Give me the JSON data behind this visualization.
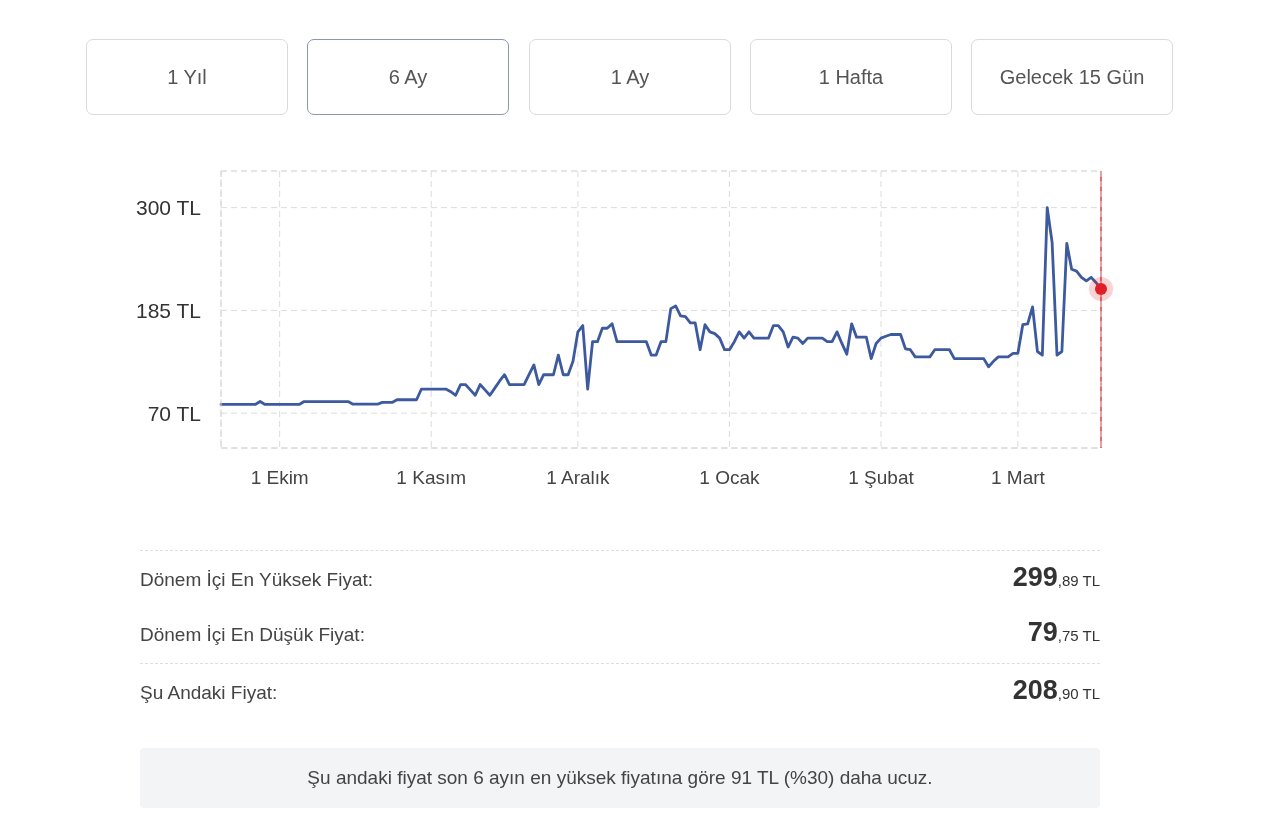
{
  "chart_data": {
    "type": "line",
    "annotations": [
      "1 Yıl",
      "6 Ay",
      "1 Ay",
      "1 Hafta",
      "Gelecek 15 Gün",
      "Dönem İçi En Yüksek Fiyat:",
      "299,89 TL",
      "Dönem İçi En Düşük Fiyat:",
      "79,75 TL",
      "Şu Andaki Fiyat:",
      "208,90 TL",
      "Şu andaki fiyat son 6 ayın en yüksek fiyatına göre 91 TL (%30) daha ucuz."
    ],
    "categories": [
      null,
      null,
      null,
      null,
      null,
      null,
      null,
      null,
      null,
      null,
      null,
      null,
      "1 Ekim",
      null,
      null,
      null,
      null,
      null,
      null,
      null,
      null,
      null,
      null,
      null,
      null,
      null,
      null,
      null,
      null,
      null,
      null,
      null,
      null,
      null,
      null,
      null,
      null,
      null,
      null,
      null,
      null,
      null,
      null,
      "1 Kasım",
      null,
      null,
      null,
      null,
      null,
      null,
      null,
      null,
      null,
      null,
      null,
      null,
      null,
      null,
      null,
      null,
      null,
      null,
      null,
      null,
      null,
      null,
      null,
      null,
      null,
      null,
      null,
      null,
      null,
      "1 Aralık",
      null,
      null,
      null,
      null,
      null,
      null,
      null,
      null,
      null,
      null,
      null,
      null,
      null,
      null,
      null,
      null,
      null,
      null,
      null,
      null,
      null,
      null,
      null,
      null,
      null,
      null,
      null,
      null,
      null,
      null,
      "1 Ocak",
      null,
      null,
      null,
      null,
      null,
      null,
      null,
      null,
      null,
      null,
      null,
      null,
      null,
      null,
      null,
      null,
      null,
      null,
      null,
      null,
      null,
      null,
      null,
      null,
      null,
      null,
      null,
      null,
      null,
      null,
      "1 Şubat",
      null,
      null,
      null,
      null,
      null,
      null,
      null,
      null,
      null,
      null,
      null,
      null,
      null,
      null,
      null,
      null,
      null,
      null,
      null,
      null,
      null,
      null,
      null,
      null,
      null,
      null,
      null,
      "1 Mart",
      null,
      null,
      null,
      null,
      null,
      null,
      null,
      null,
      null,
      null,
      null,
      null,
      null,
      null,
      null,
      null,
      null
    ],
    "series": [
      {
        "color": "#3d5a9e",
        "values": [
          79.75,
          79.75,
          79.75,
          79.75,
          79.75,
          79.75,
          79.75,
          79.75,
          83,
          79.75,
          79.75,
          79.75,
          79.75,
          79.75,
          79.75,
          79.75,
          79.75,
          83,
          83,
          83,
          83,
          83,
          83,
          83,
          83,
          83,
          83,
          80,
          80,
          80,
          80,
          80,
          80,
          82,
          82,
          82,
          85,
          85,
          85,
          85,
          85,
          97,
          97,
          97,
          97,
          97,
          97,
          94,
          90,
          102,
          102,
          96,
          90,
          102,
          96,
          90,
          98,
          106,
          113,
          102,
          102,
          102,
          102,
          113,
          124,
          102,
          113,
          113,
          113,
          135,
          113,
          113,
          128,
          161,
          168,
          97,
          150,
          150,
          165,
          165,
          170,
          150,
          150,
          150,
          150,
          150,
          150,
          150,
          135,
          135,
          150,
          150,
          187,
          190,
          179,
          178,
          171,
          171,
          141,
          169,
          161,
          159,
          154,
          141,
          141,
          150,
          161,
          154,
          161,
          154,
          154,
          154,
          154,
          168,
          168,
          161,
          144,
          155,
          154,
          148,
          154,
          154,
          154,
          154,
          150,
          150,
          161,
          148,
          136,
          170,
          155,
          155,
          155,
          131,
          148,
          154,
          156,
          158,
          158,
          158,
          142,
          141,
          133,
          133,
          133,
          133,
          141,
          141,
          141,
          141,
          131,
          131,
          131,
          131,
          131,
          131,
          131,
          122,
          128,
          133,
          133,
          133,
          137,
          137,
          169,
          170,
          189,
          139,
          135,
          299.89,
          261,
          135,
          139,
          260,
          231,
          229,
          222,
          218,
          222,
          216,
          208.9
        ]
      },
      {
        "type": "scatter",
        "color": "#e01f26",
        "marker": "circle",
        "values": [
          null,
          null,
          null,
          null,
          null,
          null,
          null,
          null,
          null,
          null,
          null,
          null,
          null,
          null,
          null,
          null,
          null,
          null,
          null,
          null,
          null,
          null,
          null,
          null,
          null,
          null,
          null,
          null,
          null,
          null,
          null,
          null,
          null,
          null,
          null,
          null,
          null,
          null,
          null,
          null,
          null,
          null,
          null,
          null,
          null,
          null,
          null,
          null,
          null,
          null,
          null,
          null,
          null,
          null,
          null,
          null,
          null,
          null,
          null,
          null,
          null,
          null,
          null,
          null,
          null,
          null,
          null,
          null,
          null,
          null,
          null,
          null,
          null,
          null,
          null,
          null,
          null,
          null,
          null,
          null,
          null,
          null,
          null,
          null,
          null,
          null,
          null,
          null,
          null,
          null,
          null,
          null,
          null,
          null,
          null,
          null,
          null,
          null,
          null,
          null,
          null,
          null,
          null,
          null,
          null,
          null,
          null,
          null,
          null,
          null,
          null,
          null,
          null,
          null,
          null,
          null,
          null,
          null,
          null,
          null,
          null,
          null,
          null,
          null,
          null,
          null,
          null,
          null,
          null,
          null,
          null,
          null,
          null,
          null,
          null,
          null,
          null,
          null,
          null,
          null,
          null,
          null,
          null,
          null,
          null,
          null,
          null,
          null,
          null,
          null,
          null,
          null,
          null,
          null,
          null,
          null,
          null,
          null,
          null,
          null,
          null,
          null,
          null,
          null,
          null,
          null,
          null,
          null,
          null,
          null,
          null,
          null,
          null,
          null,
          null,
          null,
          null,
          null,
          null,
          null,
          208.9
        ]
      }
    ],
    "ylim": [
      31,
      341
    ],
    "yticks": [
      {
        "value": 300,
        "label": "300 TL"
      },
      {
        "value": 185,
        "label": "185 TL"
      },
      {
        "value": 70,
        "label": "70 TL"
      }
    ],
    "grid": true
  }
}
